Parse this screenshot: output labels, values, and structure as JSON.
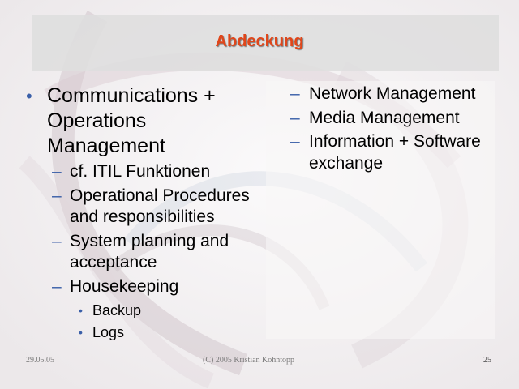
{
  "slide": {
    "title": "Abdeckung",
    "left_items": [
      {
        "level": 1,
        "text": "Communications + Operations Management"
      },
      {
        "level": 2,
        "text": "cf. ITIL Funktionen"
      },
      {
        "level": 2,
        "text": "Operational Procedures and responsibilities"
      },
      {
        "level": 2,
        "text": "System planning and acceptance"
      },
      {
        "level": 2,
        "text": "Housekeeping"
      },
      {
        "level": 3,
        "text": "Backup"
      },
      {
        "level": 3,
        "text": "Logs"
      }
    ],
    "right_items": [
      {
        "level": 2,
        "text": "Network Management"
      },
      {
        "level": 2,
        "text": "Media Management"
      },
      {
        "level": 2,
        "text": "Information + Software exchange"
      }
    ],
    "bullet_l1": "•",
    "bullet_l2": "–",
    "bullet_l3": "•"
  },
  "footer": {
    "date": "29.05.05",
    "copyright": "(C) 2005 Kristian Köhntopp",
    "page_number": "25"
  },
  "colors": {
    "title": "#e0461a",
    "bullet": "#3a5fa8",
    "title_bar": "#dedede"
  }
}
